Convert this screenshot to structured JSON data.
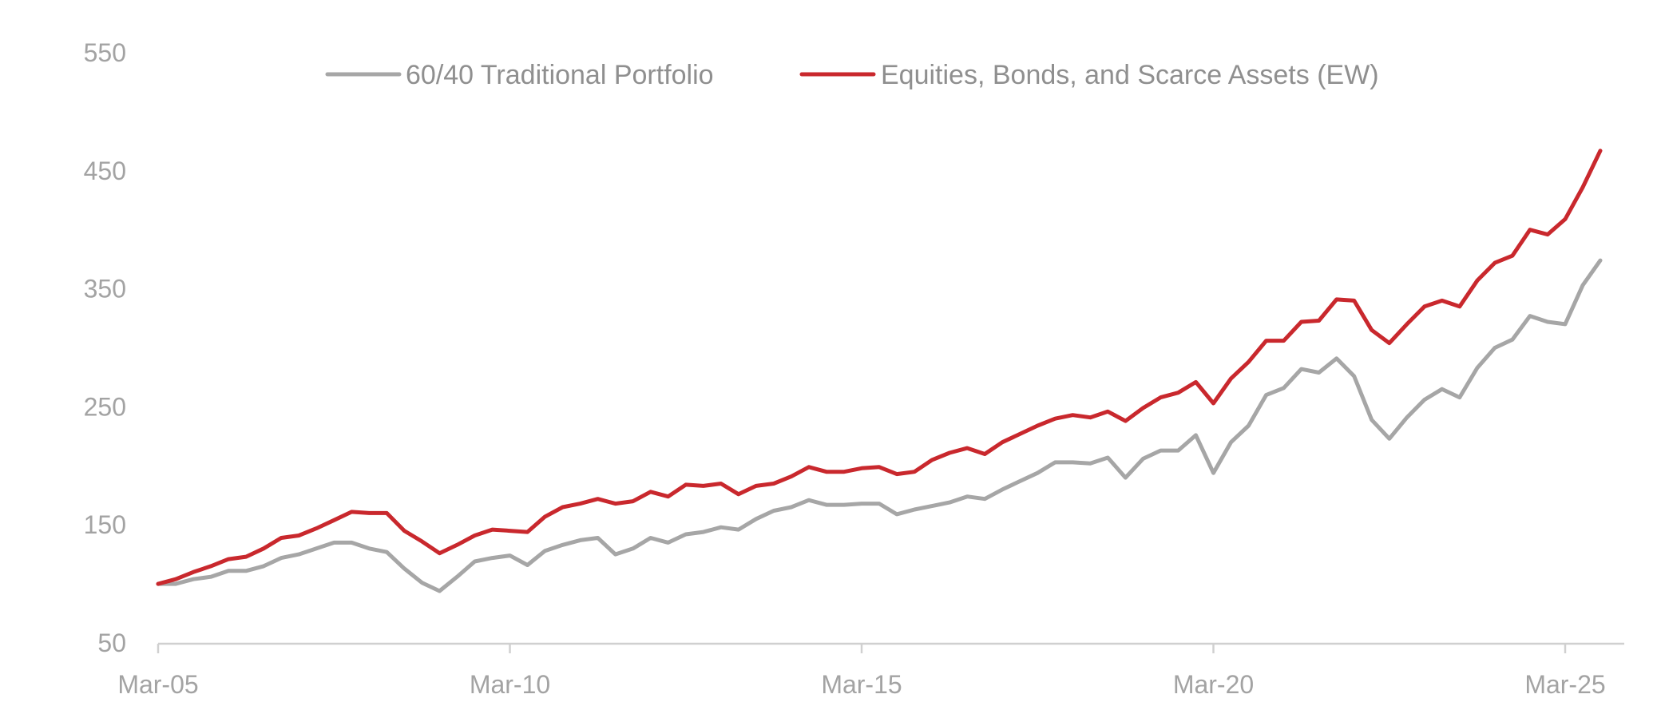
{
  "chart_data": {
    "type": "line",
    "title": "",
    "xlabel": "",
    "ylabel": "",
    "ylim": [
      50,
      550
    ],
    "y_ticks": [
      "50",
      "150",
      "250",
      "350",
      "450",
      "550"
    ],
    "x_range": [
      2005.0,
      2025.75
    ],
    "x_ticks": [
      {
        "value": 2005,
        "label": "Mar-05"
      },
      {
        "value": 2010,
        "label": "Mar-10"
      },
      {
        "value": 2015,
        "label": "Mar-15"
      },
      {
        "value": 2020,
        "label": "Mar-20"
      },
      {
        "value": 2025,
        "label": "Mar-25"
      }
    ],
    "grid": false,
    "legend_position": "top-center",
    "x": [
      2005.0,
      2005.25,
      2005.5,
      2005.75,
      2006.0,
      2006.25,
      2006.5,
      2006.75,
      2007.0,
      2007.25,
      2007.5,
      2007.75,
      2008.0,
      2008.25,
      2008.5,
      2008.75,
      2009.0,
      2009.25,
      2009.5,
      2009.75,
      2010.0,
      2010.25,
      2010.5,
      2010.75,
      2011.0,
      2011.25,
      2011.5,
      2011.75,
      2012.0,
      2012.25,
      2012.5,
      2012.75,
      2013.0,
      2013.25,
      2013.5,
      2013.75,
      2014.0,
      2014.25,
      2014.5,
      2014.75,
      2015.0,
      2015.25,
      2015.5,
      2015.75,
      2016.0,
      2016.25,
      2016.5,
      2016.75,
      2017.0,
      2017.25,
      2017.5,
      2017.75,
      2018.0,
      2018.25,
      2018.5,
      2018.75,
      2019.0,
      2019.25,
      2019.5,
      2019.75,
      2020.0,
      2020.25,
      2020.5,
      2020.75,
      2021.0,
      2021.25,
      2021.5,
      2021.75,
      2022.0,
      2022.25,
      2022.5,
      2022.75,
      2023.0,
      2023.25,
      2023.5,
      2023.75,
      2024.0,
      2024.25,
      2024.5,
      2024.75,
      2025.0,
      2025.25,
      2025.5
    ],
    "series": [
      {
        "name": "60/40 Traditional Portfolio",
        "color": "#a6a6a6",
        "values": [
          100,
          100,
          104,
          106,
          111,
          111,
          115,
          122,
          125,
          130,
          135,
          135,
          130,
          127,
          113,
          101,
          94,
          106,
          119,
          122,
          124,
          116,
          128,
          133,
          137,
          139,
          125,
          130,
          139,
          135,
          142,
          144,
          148,
          146,
          155,
          162,
          165,
          171,
          167,
          167,
          168,
          168,
          159,
          163,
          166,
          169,
          174,
          172,
          180,
          187,
          194,
          203,
          203,
          202,
          207,
          190,
          206,
          213,
          213,
          226,
          194,
          220,
          234,
          260,
          266,
          282,
          279,
          291,
          276,
          239,
          223,
          241,
          256,
          265,
          258,
          283,
          300,
          307,
          327,
          322,
          320,
          353,
          374
        ]
      },
      {
        "name": "Equities, Bonds, and Scarce Assets (EW)",
        "color": "#c9282d",
        "values": [
          100,
          104,
          110,
          115,
          121,
          123,
          130,
          139,
          141,
          147,
          154,
          161,
          160,
          160,
          145,
          136,
          126,
          133,
          141,
          146,
          145,
          144,
          157,
          165,
          168,
          172,
          168,
          170,
          178,
          174,
          184,
          183,
          185,
          176,
          183,
          185,
          191,
          199,
          195,
          195,
          198,
          199,
          193,
          195,
          205,
          211,
          215,
          210,
          220,
          227,
          234,
          240,
          243,
          241,
          246,
          238,
          249,
          258,
          262,
          271,
          253,
          274,
          288,
          306,
          306,
          322,
          323,
          341,
          340,
          315,
          304,
          320,
          335,
          340,
          335,
          357,
          372,
          378,
          400,
          396,
          409,
          436,
          467
        ]
      }
    ]
  }
}
